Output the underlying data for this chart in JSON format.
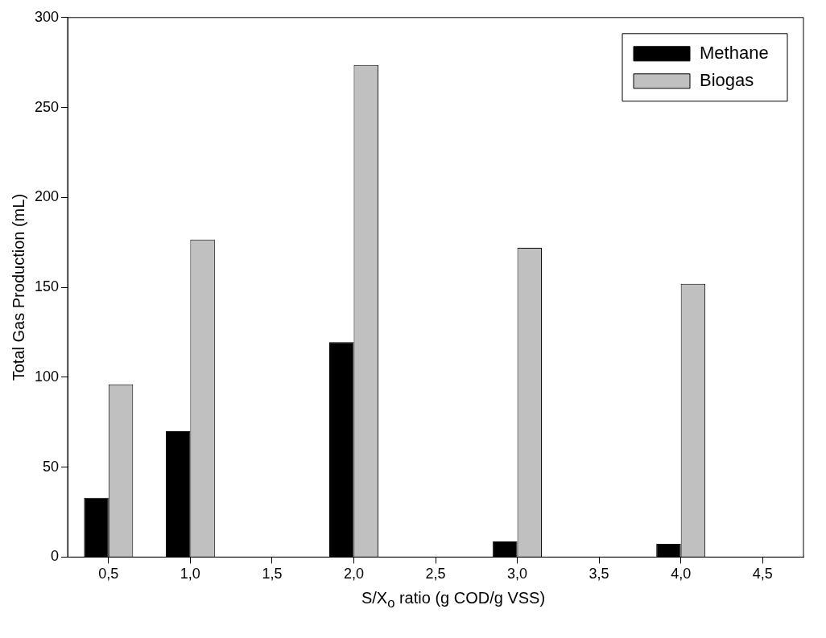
{
  "chart_data": {
    "type": "bar",
    "xlabel": "S/X$_{o}$ ratio (g COD/g VSS)",
    "ylabel": "Total Gas Production (mL)",
    "categories": [
      "0,5",
      "1,0",
      "1,5",
      "2,0",
      "2,5",
      "3,0",
      "3,5",
      "4,0",
      "4,5"
    ],
    "series": [
      {
        "name": "Methane",
        "color": "#000000",
        "values": [
          33,
          70,
          null,
          119.5,
          null,
          8.7,
          null,
          7.3,
          null
        ]
      },
      {
        "name": "Biogas",
        "color": "#c0c0c0",
        "values": [
          96,
          176.5,
          null,
          273.6,
          null,
          172,
          null,
          152,
          null
        ]
      }
    ],
    "ylim": [
      0,
      300
    ],
    "yticks": [
      0,
      50,
      100,
      150,
      200,
      250,
      300
    ],
    "grid": false,
    "legend": "top right"
  }
}
